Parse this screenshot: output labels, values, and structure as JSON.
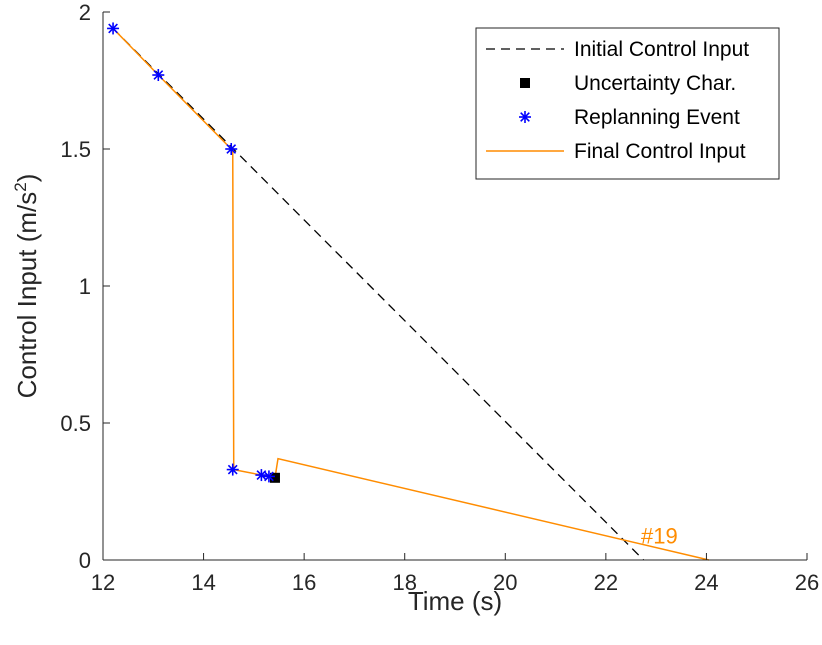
{
  "chart_data": {
    "type": "line",
    "xlabel": "Time (s)",
    "ylabel": {
      "base": "Control Input (m/s",
      "sup": "2",
      "close": ")"
    },
    "xlim": [
      12,
      26
    ],
    "ylim": [
      0,
      2
    ],
    "xticks": [
      12,
      14,
      16,
      18,
      20,
      22,
      24,
      26
    ],
    "yticks": [
      0,
      0.5,
      1,
      1.5,
      2
    ],
    "ytick_labels": [
      "0",
      "0.5",
      "1",
      "1.5",
      "2"
    ],
    "grid": false,
    "legend_position": "top-right",
    "series": [
      {
        "name": "Initial Control Input",
        "style": "dashed",
        "color": "#000000",
        "x": [
          12.2,
          22.75
        ],
        "y": [
          1.94,
          0.0
        ]
      },
      {
        "name": "Uncertainty Char.",
        "style": "square-marker",
        "color": "#000000",
        "x": [
          15.42
        ],
        "y": [
          0.3
        ]
      },
      {
        "name": "Replanning Event",
        "style": "star-marker",
        "color": "#0000ff",
        "x": [
          12.2,
          13.1,
          14.55,
          14.58,
          15.15,
          15.3
        ],
        "y": [
          1.94,
          1.77,
          1.5,
          0.33,
          0.31,
          0.305
        ]
      },
      {
        "name": "Final Control Input",
        "style": "solid",
        "color": "#ff8c00",
        "x": [
          12.2,
          13.1,
          14.55,
          14.58,
          14.6,
          15.15,
          15.42,
          15.48,
          24.05
        ],
        "y": [
          1.94,
          1.77,
          1.5,
          1.5,
          0.33,
          0.31,
          0.3,
          0.37,
          0.0
        ]
      }
    ],
    "annotations": [
      {
        "text": "#19",
        "x": 22.7,
        "y": 0.06,
        "color": "#ff8c00"
      }
    ]
  }
}
